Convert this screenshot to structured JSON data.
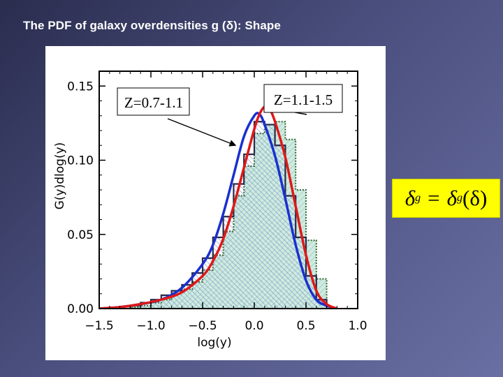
{
  "slide": {
    "title_prefix": "The PDF of galaxy overdensities g (",
    "title_symbol": "δ",
    "title_suffix": "): Shape"
  },
  "equation": {
    "lhs_symbol": "δ",
    "lhs_sub": "g",
    "op": "=",
    "rhs_symbol": "δ",
    "rhs_sub": "g",
    "rhs_arg": "(δ)"
  },
  "colors": {
    "histogram_a_edge": "#2a2a4a",
    "histogram_b_edge": "#336633",
    "hatch_blue": "#6f86c8",
    "fill_green": "#bfe3d6",
    "curve_blue": "#1a2fd0",
    "curve_red": "#e01818",
    "axis": "#000000"
  },
  "chart_data": {
    "type": "line",
    "title": "",
    "xlabel": "log(y)",
    "ylabel": "G(y)dlog(y)",
    "xlim": [
      -1.5,
      1.0
    ],
    "ylim": [
      0.0,
      0.16
    ],
    "x_ticks": [
      -1.5,
      -1.0,
      -0.5,
      0.0,
      0.5,
      1.0
    ],
    "x_tick_labels": [
      "−1.5",
      "−1.0",
      "−0.5",
      "0.0",
      "0.5",
      "1.0"
    ],
    "y_ticks": [
      0.0,
      0.05,
      0.1,
      0.15
    ],
    "y_tick_labels": [
      "0.00",
      "0.05",
      "0.10",
      "0.15"
    ],
    "bin_edges": [
      -1.2,
      -1.1,
      -1.0,
      -0.9,
      -0.8,
      -0.7,
      -0.6,
      -0.5,
      -0.4,
      -0.3,
      -0.2,
      -0.1,
      0.0,
      0.1,
      0.2,
      0.3,
      0.4,
      0.5,
      0.6,
      0.7
    ],
    "histograms": [
      {
        "name": "Z=0.7-1.1",
        "style": "dark-outline-hatched",
        "values": [
          0.002,
          0.004,
          0.006,
          0.009,
          0.012,
          0.016,
          0.024,
          0.034,
          0.048,
          0.062,
          0.084,
          0.104,
          0.126,
          0.124,
          0.11,
          0.076,
          0.048,
          0.022,
          0.006
        ]
      },
      {
        "name": "Z=1.1-1.5",
        "style": "green-dotted-filled",
        "values": [
          0.001,
          0.002,
          0.004,
          0.006,
          0.01,
          0.013,
          0.018,
          0.026,
          0.036,
          0.052,
          0.076,
          0.096,
          0.118,
          0.124,
          0.126,
          0.114,
          0.08,
          0.046,
          0.02
        ]
      }
    ],
    "series": [
      {
        "name": "fit Z=0.7-1.1",
        "color": "blue",
        "x": [
          -1.5,
          -1.3,
          -1.1,
          -0.9,
          -0.7,
          -0.5,
          -0.4,
          -0.3,
          -0.2,
          -0.1,
          0.0,
          0.05,
          0.1,
          0.2,
          0.3,
          0.4,
          0.5,
          0.6,
          0.7,
          0.8
        ],
        "y": [
          0.0,
          0.001,
          0.003,
          0.006,
          0.014,
          0.03,
          0.043,
          0.064,
          0.09,
          0.116,
          0.13,
          0.131,
          0.124,
          0.103,
          0.074,
          0.043,
          0.019,
          0.006,
          0.002,
          0.0
        ]
      },
      {
        "name": "fit Z=1.1-1.5",
        "color": "red",
        "x": [
          -1.5,
          -1.3,
          -1.1,
          -0.9,
          -0.7,
          -0.5,
          -0.4,
          -0.3,
          -0.2,
          -0.1,
          0.0,
          0.05,
          0.1,
          0.15,
          0.2,
          0.3,
          0.4,
          0.5,
          0.6,
          0.7,
          0.8
        ],
        "y": [
          0.0,
          0.001,
          0.003,
          0.006,
          0.011,
          0.022,
          0.032,
          0.047,
          0.069,
          0.095,
          0.121,
          0.131,
          0.136,
          0.134,
          0.126,
          0.102,
          0.069,
          0.036,
          0.012,
          0.003,
          0.0
        ]
      }
    ],
    "annotations": [
      {
        "text": "Z=0.7-1.1",
        "points_to_x": -0.18,
        "points_to_y": 0.11
      },
      {
        "text": "Z=1.1-1.5",
        "points_to_x": 0.18,
        "points_to_y": 0.135
      }
    ]
  }
}
